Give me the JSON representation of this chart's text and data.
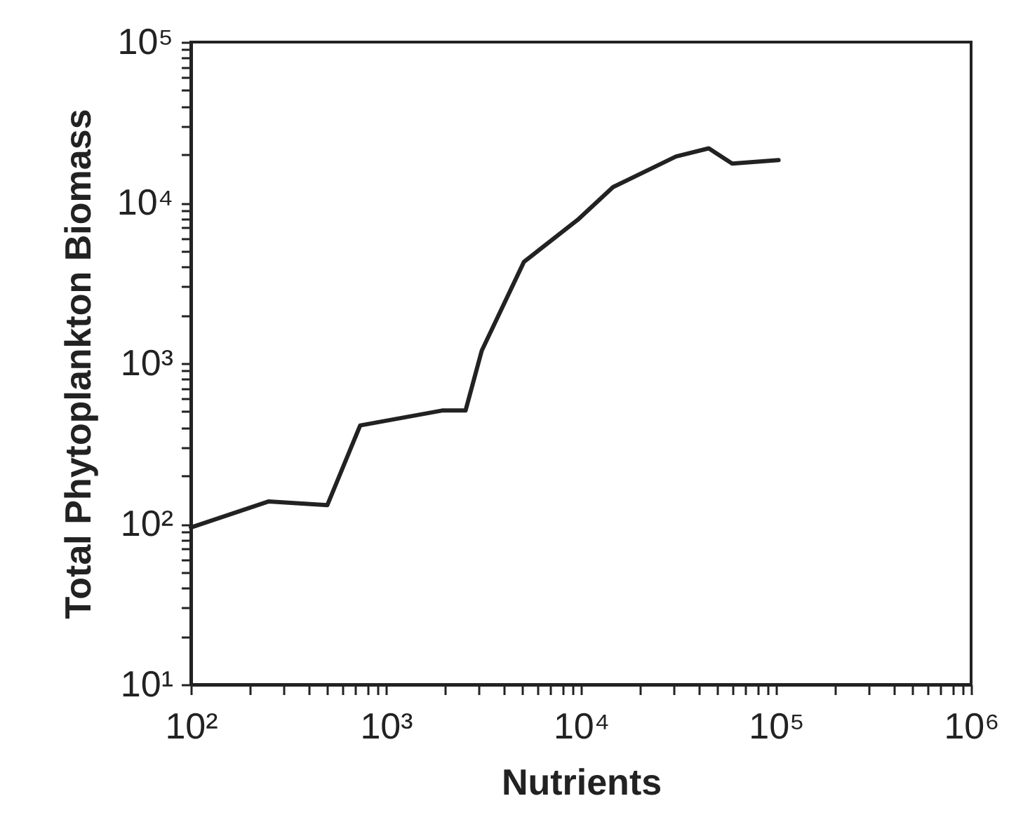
{
  "chart_data": {
    "type": "line",
    "xlabel": "Nutrients",
    "ylabel": "Total  Phytoplankton  Biomass",
    "log": "xy",
    "grid": false,
    "marker": "none",
    "line_style": "solid",
    "x": [
      100,
      251,
      501,
      738,
      1940,
      2560,
      3100,
      5100,
      9620,
      14600,
      30700,
      45200,
      59600,
      103000
    ],
    "series": [
      {
        "color": "#222222",
        "values": [
          95,
          138,
          131,
          410,
          508,
          508,
          1199,
          4280,
          7820,
          12500,
          19400,
          21800,
          17500,
          18400
        ]
      }
    ],
    "xlim": [
      100,
      1000000
    ],
    "ylim": [
      10,
      100000
    ],
    "xticks": [
      {
        "value": 100,
        "label": "10²"
      },
      {
        "value": 200,
        "label": null
      },
      {
        "value": 300,
        "label": null
      },
      {
        "value": 400,
        "label": null
      },
      {
        "value": 500,
        "label": null
      },
      {
        "value": 600,
        "label": null
      },
      {
        "value": 700,
        "label": null
      },
      {
        "value": 800,
        "label": null
      },
      {
        "value": 900,
        "label": null
      },
      {
        "value": 1000,
        "label": "10³"
      },
      {
        "value": 2000,
        "label": null
      },
      {
        "value": 3000,
        "label": null
      },
      {
        "value": 4000,
        "label": null
      },
      {
        "value": 5000,
        "label": null
      },
      {
        "value": 6000,
        "label": null
      },
      {
        "value": 7000,
        "label": null
      },
      {
        "value": 8000,
        "label": null
      },
      {
        "value": 9000,
        "label": null
      },
      {
        "value": 10000,
        "label": "10⁴"
      },
      {
        "value": 20000,
        "label": null
      },
      {
        "value": 30000,
        "label": null
      },
      {
        "value": 40000,
        "label": null
      },
      {
        "value": 50000,
        "label": null
      },
      {
        "value": 60000,
        "label": null
      },
      {
        "value": 70000,
        "label": null
      },
      {
        "value": 80000,
        "label": null
      },
      {
        "value": 90000,
        "label": null
      },
      {
        "value": 100000,
        "label": "10⁵"
      },
      {
        "value": 200000,
        "label": null
      },
      {
        "value": 300000,
        "label": null
      },
      {
        "value": 400000,
        "label": null
      },
      {
        "value": 500000,
        "label": null
      },
      {
        "value": 600000,
        "label": null
      },
      {
        "value": 700000,
        "label": null
      },
      {
        "value": 800000,
        "label": null
      },
      {
        "value": 900000,
        "label": null
      },
      {
        "value": 1000000,
        "label": "10⁶"
      }
    ],
    "yticks": [
      {
        "value": 10,
        "label": "10¹"
      },
      {
        "value": 20,
        "label": null
      },
      {
        "value": 30,
        "label": null
      },
      {
        "value": 40,
        "label": null
      },
      {
        "value": 50,
        "label": null
      },
      {
        "value": 60,
        "label": null
      },
      {
        "value": 70,
        "label": null
      },
      {
        "value": 80,
        "label": null
      },
      {
        "value": 90,
        "label": null
      },
      {
        "value": 100,
        "label": "10²"
      },
      {
        "value": 200,
        "label": null
      },
      {
        "value": 300,
        "label": null
      },
      {
        "value": 400,
        "label": null
      },
      {
        "value": 500,
        "label": null
      },
      {
        "value": 600,
        "label": null
      },
      {
        "value": 700,
        "label": null
      },
      {
        "value": 800,
        "label": null
      },
      {
        "value": 900,
        "label": null
      },
      {
        "value": 1000,
        "label": "10³"
      },
      {
        "value": 2000,
        "label": null
      },
      {
        "value": 3000,
        "label": null
      },
      {
        "value": 4000,
        "label": null
      },
      {
        "value": 5000,
        "label": null
      },
      {
        "value": 6000,
        "label": null
      },
      {
        "value": 7000,
        "label": null
      },
      {
        "value": 8000,
        "label": null
      },
      {
        "value": 9000,
        "label": null
      },
      {
        "value": 10000,
        "label": "10⁴"
      },
      {
        "value": 20000,
        "label": null
      },
      {
        "value": 30000,
        "label": null
      },
      {
        "value": 40000,
        "label": null
      },
      {
        "value": 50000,
        "label": null
      },
      {
        "value": 60000,
        "label": null
      },
      {
        "value": 70000,
        "label": null
      },
      {
        "value": 80000,
        "label": null
      },
      {
        "value": 90000,
        "label": null
      },
      {
        "value": 100000,
        "label": "10⁵"
      }
    ]
  }
}
